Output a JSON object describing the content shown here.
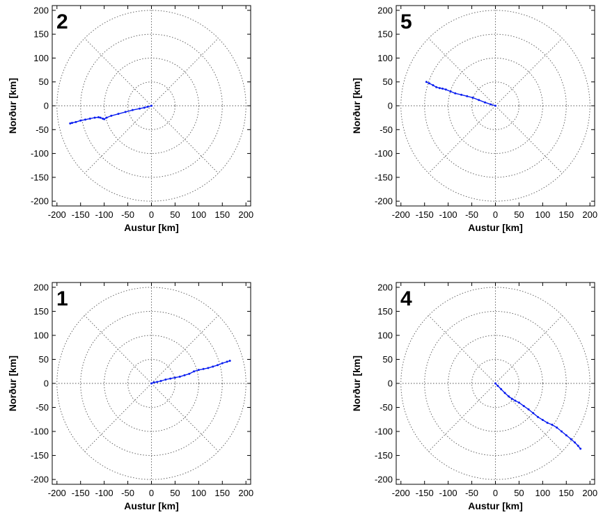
{
  "chart_data": [
    {
      "type": "line",
      "panel_label": "2",
      "xlabel": "Austur [km]",
      "ylabel": "Norður [km]",
      "xlim": [
        -210,
        210
      ],
      "ylim": [
        -210,
        210
      ],
      "xticks": [
        -200,
        -150,
        -100,
        -50,
        0,
        50,
        100,
        150,
        200
      ],
      "yticks": [
        200,
        150,
        100,
        50,
        0,
        -50,
        -100,
        -150,
        -200
      ],
      "polar_grid": {
        "rings_km": [
          50,
          100,
          150,
          200
        ],
        "spokes_deg": [
          0,
          45,
          90,
          135,
          180,
          225,
          270,
          315
        ]
      },
      "color": "#0a1ef0",
      "series": [
        {
          "x": [
            0,
            -8,
            -15,
            -25,
            -40,
            -55,
            -70,
            -85,
            -95,
            -100,
            -103,
            -108,
            -112,
            -120,
            -130,
            -140,
            -150,
            -160,
            -168,
            -172
          ],
          "y": [
            0,
            -2,
            -4,
            -6,
            -9,
            -13,
            -17,
            -21,
            -25,
            -28,
            -27,
            -25,
            -24,
            -25,
            -27,
            -29,
            -31,
            -34,
            -36,
            -37
          ]
        }
      ]
    },
    {
      "type": "line",
      "panel_label": "5",
      "xlabel": "Austur [km]",
      "ylabel": "Norður [km]",
      "xlim": [
        -210,
        210
      ],
      "ylim": [
        -210,
        210
      ],
      "xticks": [
        -200,
        -150,
        -100,
        -50,
        0,
        50,
        100,
        150,
        200
      ],
      "yticks": [
        200,
        150,
        100,
        50,
        0,
        -50,
        -100,
        -150,
        -200
      ],
      "polar_grid": {
        "rings_km": [
          50,
          100,
          150,
          200
        ],
        "spokes_deg": [
          0,
          45,
          90,
          135,
          180,
          225,
          270,
          315
        ]
      },
      "color": "#0a1ef0",
      "series": [
        {
          "x": [
            0,
            -10,
            -22,
            -35,
            -48,
            -60,
            -72,
            -85,
            -95,
            -105,
            -112,
            -118,
            -125,
            -132,
            -140,
            -146
          ],
          "y": [
            0,
            3,
            7,
            12,
            17,
            20,
            23,
            26,
            30,
            34,
            36,
            37,
            39,
            43,
            47,
            50
          ]
        }
      ]
    },
    {
      "type": "line",
      "panel_label": "1",
      "xlabel": "Austur [km]",
      "ylabel": "Norður [km]",
      "xlim": [
        -210,
        210
      ],
      "ylim": [
        -210,
        210
      ],
      "xticks": [
        -200,
        -150,
        -100,
        -50,
        0,
        50,
        100,
        150,
        200
      ],
      "yticks": [
        200,
        150,
        100,
        50,
        0,
        -50,
        -100,
        -150,
        -200
      ],
      "polar_grid": {
        "rings_km": [
          50,
          100,
          150,
          200
        ],
        "spokes_deg": [
          0,
          45,
          90,
          135,
          180,
          225,
          270,
          315
        ]
      },
      "color": "#0a1ef0",
      "series": [
        {
          "x": [
            0,
            5,
            12,
            20,
            30,
            40,
            50,
            60,
            70,
            80,
            90,
            100,
            110,
            120,
            130,
            140,
            150,
            160,
            166
          ],
          "y": [
            0,
            2,
            3,
            5,
            8,
            10,
            12,
            14,
            17,
            20,
            25,
            28,
            30,
            32,
            35,
            38,
            42,
            45,
            47
          ]
        }
      ]
    },
    {
      "type": "line",
      "panel_label": "4",
      "xlabel": "Austur [km]",
      "ylabel": "Norður [km]",
      "xlim": [
        -210,
        210
      ],
      "ylim": [
        -210,
        210
      ],
      "xticks": [
        -200,
        -150,
        -100,
        -50,
        0,
        50,
        100,
        150,
        200
      ],
      "yticks": [
        200,
        150,
        100,
        50,
        0,
        -50,
        -100,
        -150,
        -200
      ],
      "polar_grid": {
        "rings_km": [
          50,
          100,
          150,
          200
        ],
        "spokes_deg": [
          0,
          45,
          90,
          135,
          180,
          225,
          270,
          315
        ]
      },
      "color": "#0a1ef0",
      "series": [
        {
          "x": [
            0,
            5,
            12,
            20,
            28,
            35,
            42,
            50,
            60,
            70,
            80,
            90,
            100,
            110,
            120,
            130,
            140,
            150,
            160,
            168,
            175,
            180
          ],
          "y": [
            0,
            -5,
            -12,
            -20,
            -27,
            -32,
            -36,
            -40,
            -47,
            -54,
            -62,
            -70,
            -76,
            -82,
            -86,
            -92,
            -100,
            -108,
            -116,
            -123,
            -130,
            -136
          ]
        }
      ]
    }
  ]
}
